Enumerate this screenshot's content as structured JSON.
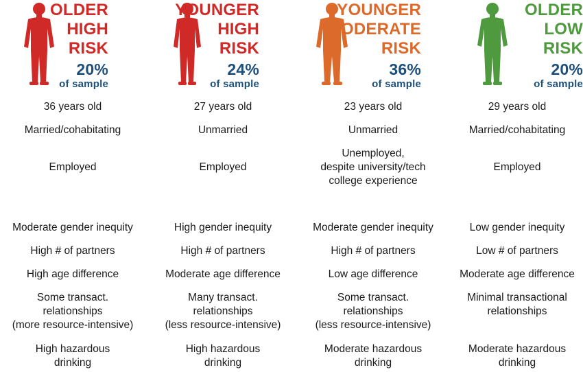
{
  "colors": {
    "older_high": "#cf2a27",
    "younger_high": "#cf2a27",
    "younger_moderate": "#dc6a2a",
    "older_low": "#4f9a3e",
    "percent_text": "#1d4f7a"
  },
  "groups": [
    {
      "title_lines": [
        "OLDER",
        "HIGH",
        "RISK"
      ],
      "percent": "20%",
      "sample_label": "of sample",
      "icon": "person-silhouette-icon",
      "age": "36 years old",
      "marital": "Married/cohabitating",
      "employment": "Employed",
      "gender": "Moderate gender inequity",
      "partners": "High # of partners",
      "age_diff": "High age difference",
      "transactional": "Some transact.\nrelationships\n(more resource-intensive)",
      "drinking": "High hazardous\ndrinking"
    },
    {
      "title_lines": [
        "YOUNGER",
        "HIGH",
        "RISK"
      ],
      "percent": "24%",
      "sample_label": "of sample",
      "icon": "person-silhouette-icon",
      "age": "27 years old",
      "marital": "Unmarried",
      "employment": "Employed",
      "gender": "High gender inequity",
      "partners": "High # of partners",
      "age_diff": "Moderate age difference",
      "transactional": "Many transact.\nrelationships\n(less resource-intensive)",
      "drinking": "High hazardous\ndrinking"
    },
    {
      "title_lines": [
        "YOUNGER",
        "MODERATE",
        "RISK"
      ],
      "percent": "36%",
      "sample_label": "of sample",
      "icon": "person-silhouette-icon",
      "age": "23 years old",
      "marital": "Unmarried",
      "employment": "Unemployed,\ndespite university/tech\ncollege experience",
      "gender": "Moderate gender inequity",
      "partners": "High # of partners",
      "age_diff": "Low age difference",
      "transactional": "Some transact.\nrelationships\n(less resource-intensive)",
      "drinking": "Moderate hazardous\ndrinking"
    },
    {
      "title_lines": [
        "OLDER",
        "LOW",
        "RISK"
      ],
      "percent": "20%",
      "sample_label": "of sample",
      "icon": "person-silhouette-icon",
      "age": "29 years old",
      "marital": "Married/cohabitating",
      "employment": "Employed",
      "gender": "Low gender inequity",
      "partners": "Low # of partners",
      "age_diff": "Moderate age difference",
      "transactional": "Minimal transactional\nrelationships",
      "drinking": "Moderate hazardous\ndrinking"
    }
  ]
}
